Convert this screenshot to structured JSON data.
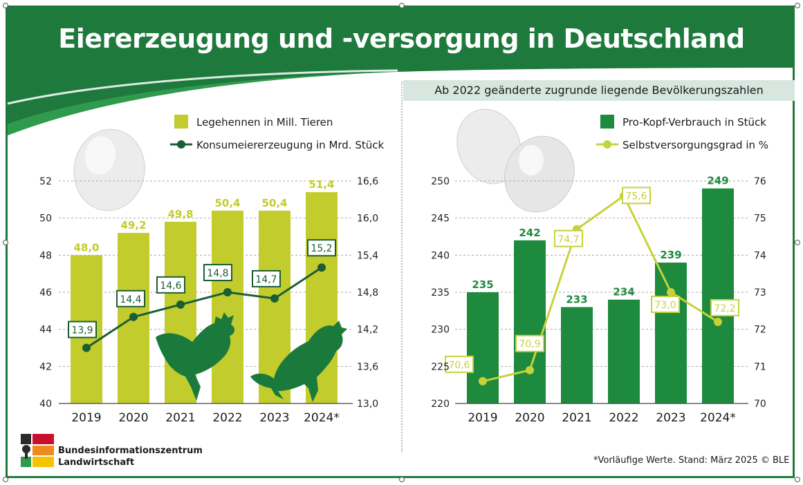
{
  "title": "Eiererzeugung und -versorgung in Deutschland",
  "subtitle": "Ab 2022 geänderte zugrunde liegende Bevölkerungszahlen",
  "footnote": "*Vorläufige Werte. Stand: März 2025 © BLE",
  "logo": {
    "line1": "Bundesinformationszentrum",
    "line2": "Landwirtschaft"
  },
  "colors": {
    "header_green": "#1e7a3c",
    "bar_lime": "#c2cc2c",
    "line_dark_green": "#1a5e33",
    "bar_green": "#1d8a3e",
    "line_lime": "#c6d23a",
    "subtitle_band": "#d7e7df"
  },
  "icons": [
    "egg-icon",
    "hen-icon",
    "rooster-icon",
    "ble-logo-icon"
  ],
  "chart_data": [
    {
      "type": "bar",
      "categories": [
        "2019",
        "2020",
        "2021",
        "2022",
        "2023",
        "2024*"
      ],
      "series": [
        {
          "name": "Legehennen in Mill. Tieren",
          "type": "bar",
          "axis": "left",
          "values": [
            48.0,
            49.2,
            49.8,
            50.4,
            50.4,
            51.4
          ],
          "labels": [
            "48,0",
            "49,2",
            "49,8",
            "50,4",
            "50,4",
            "51,4"
          ]
        },
        {
          "name": "Konsumeiererzeugung in Mrd. Stück",
          "type": "line",
          "axis": "right",
          "values": [
            13.9,
            14.4,
            14.6,
            14.8,
            14.7,
            15.2
          ],
          "labels": [
            "13,9",
            "14,4",
            "14,6",
            "14,8",
            "14,7",
            "15,2"
          ]
        }
      ],
      "y_left": {
        "range": [
          40,
          52
        ],
        "ticks": [
          "40",
          "42",
          "44",
          "46",
          "48",
          "50",
          "52"
        ]
      },
      "y_right": {
        "range": [
          13.0,
          16.6
        ],
        "ticks": [
          "13,0",
          "13,6",
          "14,2",
          "14,8",
          "15,4",
          "16,0",
          "16,6"
        ]
      },
      "grid": true,
      "legend_position": "top-right"
    },
    {
      "type": "bar",
      "categories": [
        "2019",
        "2020",
        "2021",
        "2022",
        "2023",
        "2024*"
      ],
      "series": [
        {
          "name": "Pro-Kopf-Verbrauch in Stück",
          "type": "bar",
          "axis": "left",
          "values": [
            235,
            242,
            233,
            234,
            239,
            249
          ],
          "labels": [
            "235",
            "242",
            "233",
            "234",
            "239",
            "249"
          ]
        },
        {
          "name": "Selbstversorgungsgrad in %",
          "type": "line",
          "axis": "right",
          "values": [
            70.6,
            70.9,
            74.7,
            75.6,
            73.0,
            72.2
          ],
          "labels": [
            "70,6",
            "70,9",
            "74,7",
            "75,6",
            "73,0",
            "72,2"
          ]
        }
      ],
      "y_left": {
        "range": [
          220,
          250
        ],
        "ticks": [
          "220",
          "225",
          "230",
          "235",
          "240",
          "245",
          "250"
        ]
      },
      "y_right": {
        "range": [
          70,
          76
        ],
        "ticks": [
          "70",
          "71",
          "72",
          "73",
          "74",
          "75",
          "76"
        ]
      },
      "grid": true,
      "legend_position": "top-right"
    }
  ]
}
